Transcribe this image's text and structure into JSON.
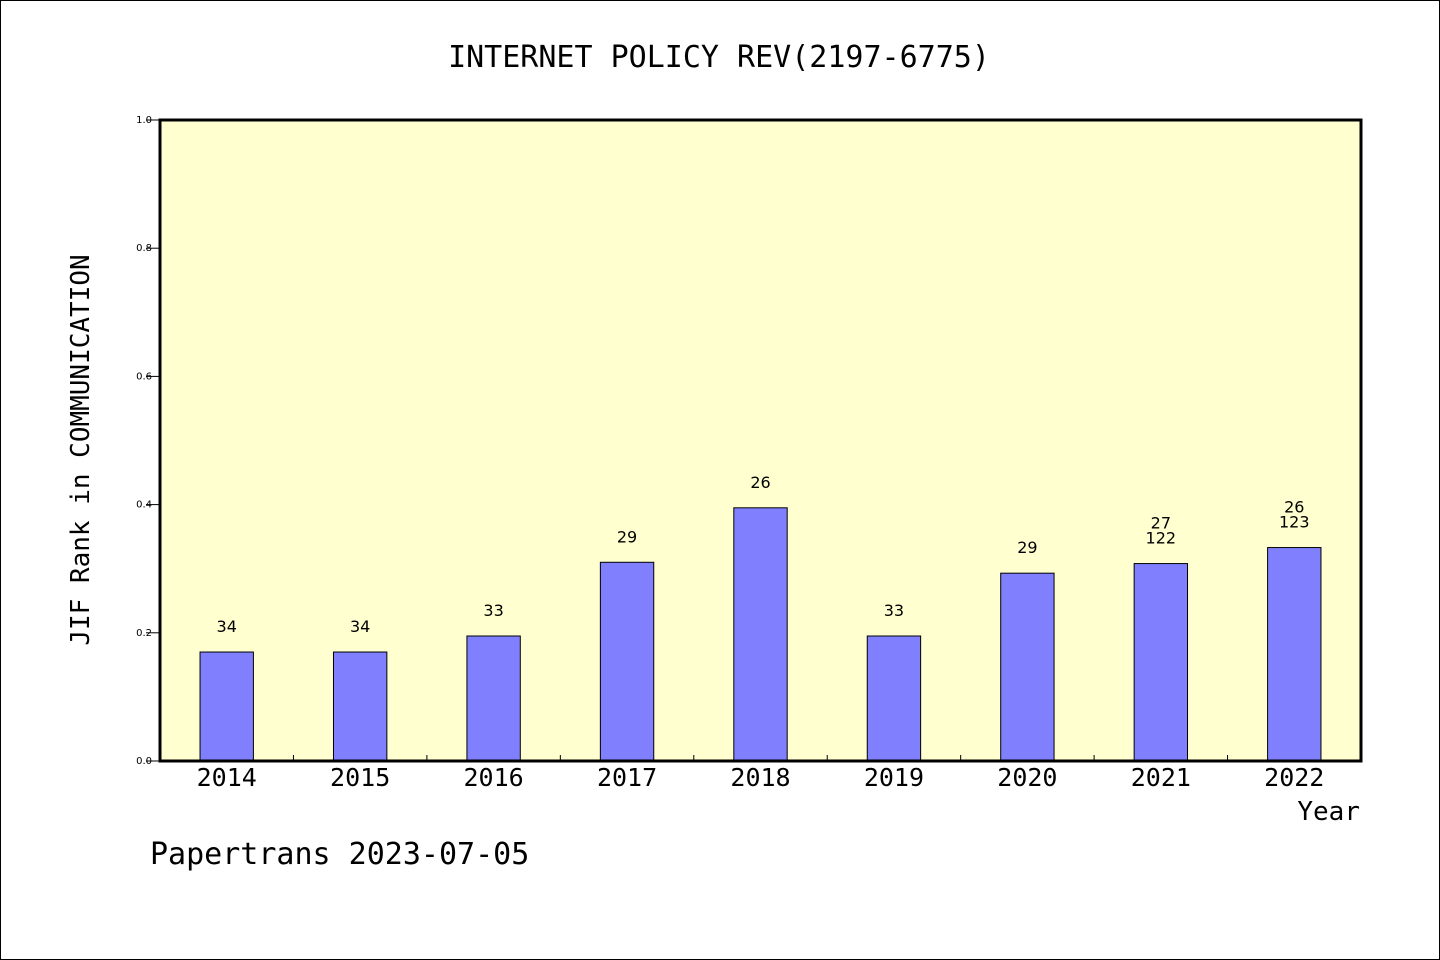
{
  "chart_data": {
    "type": "bar",
    "title": "INTERNET POLICY REV(2197-6775)",
    "xlabel": "Year",
    "ylabel": "JIF Rank in COMMUNICATION",
    "ylim": [
      0,
      1.0
    ],
    "yticks": [
      "0.0",
      "0.2",
      "0.4",
      "0.6",
      "0.8",
      "1.0"
    ],
    "categories": [
      "2014",
      "2015",
      "2016",
      "2017",
      "2018",
      "2019",
      "2020",
      "2021",
      "2022"
    ],
    "values": [
      0.17,
      0.17,
      0.195,
      0.31,
      0.395,
      0.195,
      0.293,
      0.308,
      0.333
    ],
    "labels": [
      [
        "34"
      ],
      [
        "34"
      ],
      [
        "33"
      ],
      [
        "29"
      ],
      [
        "26"
      ],
      [
        "33"
      ],
      [
        "29"
      ],
      [
        "27",
        "122"
      ],
      [
        "26",
        "123"
      ]
    ],
    "bar_color": "#8080ff",
    "plot_background": "#ffffd0",
    "grid": false
  },
  "footer": "Papertrans 2023-07-05"
}
